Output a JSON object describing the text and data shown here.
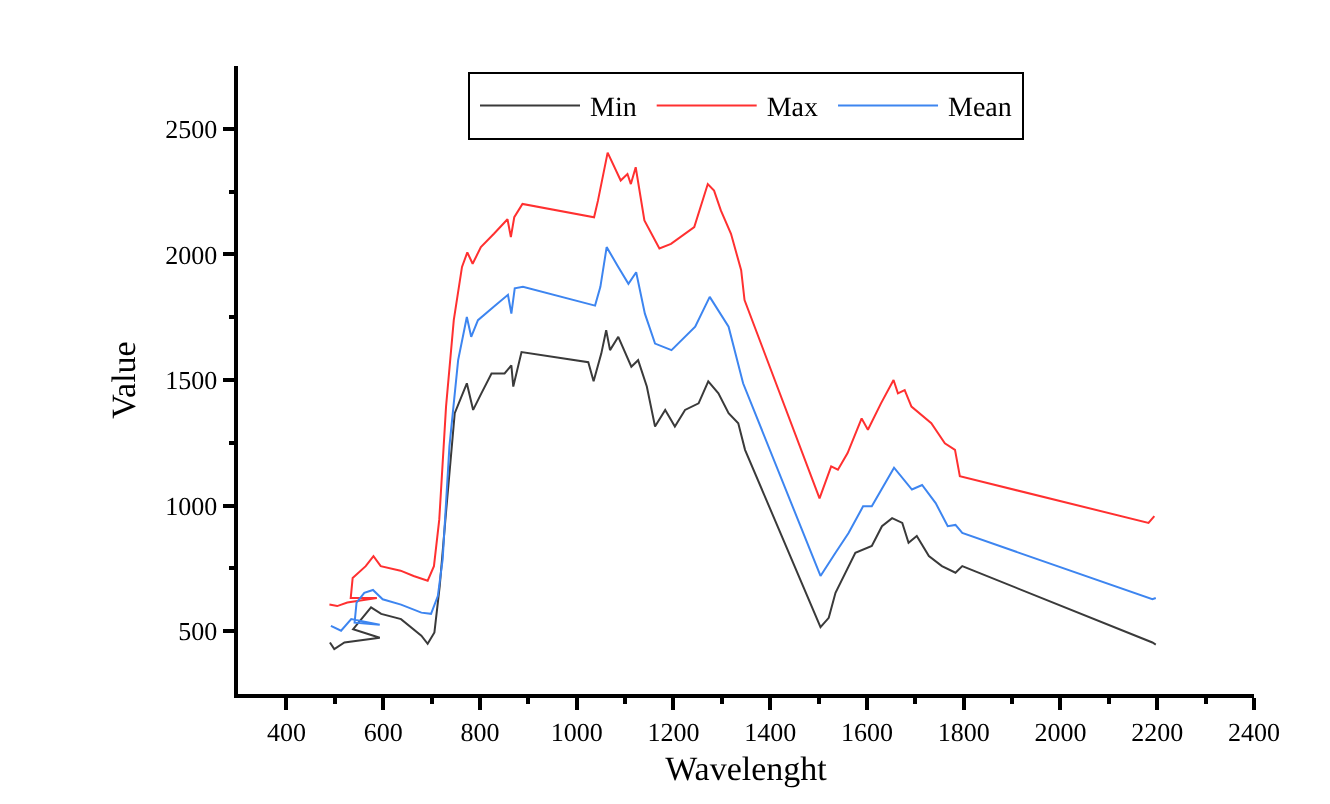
{
  "chart_data": {
    "type": "line",
    "xlabel": "Wavelenght",
    "ylabel": "Value",
    "xlim": [
      300,
      2400
    ],
    "ylim": [
      250,
      2750
    ],
    "xticks": [
      400,
      600,
      800,
      1000,
      1200,
      1400,
      1600,
      1800,
      2000,
      2200,
      2400
    ],
    "yticks": [
      500,
      1000,
      1500,
      2000,
      2500
    ],
    "grid": false,
    "legend": "top",
    "marker": "none",
    "line_style": "solid",
    "series": [
      {
        "name": "Min",
        "color": "#3a3a3a",
        "x": [
          490,
          499,
          520,
          593,
          538,
          575,
          596,
          637,
          679,
          692,
          706,
          717,
          731,
          748,
          773,
          786,
          803,
          824,
          851,
          865,
          869,
          886,
          1024,
          1035,
          1051,
          1061,
          1069,
          1086,
          1113,
          1127,
          1145,
          1162,
          1183,
          1203,
          1224,
          1252,
          1272,
          1293,
          1314,
          1334,
          1348,
          1504,
          1521,
          1535,
          1576,
          1610,
          1631,
          1652,
          1673,
          1686,
          1703,
          1728,
          1755,
          1783,
          1797,
          2190,
          2197
        ],
        "values": [
          455,
          429,
          455,
          474,
          508,
          595,
          569,
          548,
          482,
          450,
          495,
          680,
          997,
          1368,
          1487,
          1381,
          1447,
          1526,
          1526,
          1558,
          1474,
          1611,
          1571,
          1495,
          1606,
          1698,
          1619,
          1672,
          1553,
          1579,
          1474,
          1315,
          1381,
          1315,
          1381,
          1407,
          1495,
          1447,
          1368,
          1328,
          1222,
          516,
          553,
          653,
          812,
          839,
          918,
          950,
          931,
          852,
          879,
          799,
          759,
          733,
          759,
          455,
          447
        ]
      },
      {
        "name": "Max",
        "color": "#ff3030",
        "x": [
          489,
          505,
          526,
          587,
          533,
          537,
          564,
          580,
          595,
          636,
          663,
          692,
          705,
          716,
          730,
          746,
          763,
          774,
          785,
          802,
          829,
          857,
          864,
          871,
          888,
          1036,
          1044,
          1064,
          1091,
          1105,
          1112,
          1122,
          1140,
          1171,
          1195,
          1243,
          1271,
          1284,
          1298,
          1319,
          1340,
          1347,
          1502,
          1526,
          1540,
          1560,
          1589,
          1602,
          1629,
          1655,
          1664,
          1678,
          1692,
          1733,
          1761,
          1782,
          1792,
          2182,
          2194
        ],
        "values": [
          606,
          600,
          614,
          632,
          632,
          712,
          759,
          799,
          759,
          741,
          720,
          701,
          759,
          944,
          1394,
          1738,
          1950,
          2008,
          1963,
          2029,
          2082,
          2140,
          2069,
          2148,
          2201,
          2148,
          2214,
          2405,
          2294,
          2320,
          2280,
          2347,
          2135,
          2024,
          2042,
          2109,
          2280,
          2254,
          2175,
          2082,
          1937,
          1818,
          1029,
          1156,
          1143,
          1209,
          1347,
          1302,
          1407,
          1500,
          1447,
          1460,
          1394,
          1328,
          1248,
          1222,
          1117,
          931,
          958
        ]
      },
      {
        "name": "Mean",
        "color": "#3d85f0",
        "x": [
          492,
          513,
          534,
          593,
          541,
          545,
          561,
          579,
          599,
          637,
          679,
          699,
          713,
          723,
          737,
          755,
          773,
          782,
          796,
          831,
          858,
          865,
          872,
          889,
          1038,
          1049,
          1062,
          1086,
          1107,
          1123,
          1141,
          1162,
          1196,
          1245,
          1275,
          1314,
          1344,
          1504,
          1535,
          1562,
          1592,
          1610,
          1656,
          1693,
          1714,
          1742,
          1767,
          1783,
          1797,
          2190,
          2197
        ],
        "values": [
          521,
          502,
          548,
          526,
          534,
          614,
          653,
          664,
          627,
          606,
          574,
          569,
          640,
          786,
          1236,
          1579,
          1751,
          1672,
          1738,
          1796,
          1839,
          1764,
          1865,
          1871,
          1796,
          1871,
          2029,
          1950,
          1883,
          1929,
          1764,
          1645,
          1619,
          1712,
          1831,
          1712,
          1487,
          720,
          812,
          891,
          997,
          997,
          1151,
          1064,
          1082,
          1010,
          918,
          923,
          891,
          627,
          632
        ]
      }
    ]
  }
}
